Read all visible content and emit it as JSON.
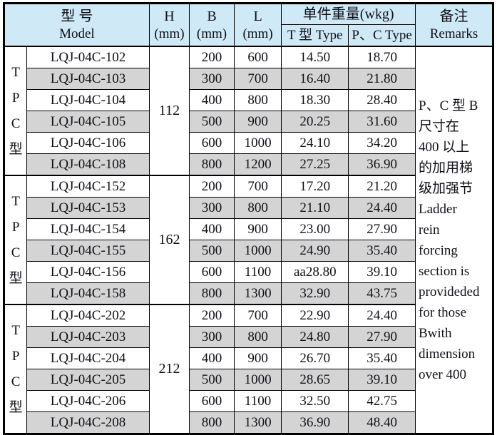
{
  "header": {
    "model_zh": "型  号",
    "model_en": "Model",
    "h_label": "H",
    "h_unit": "(mm)",
    "b_label": "B",
    "b_unit": "(mm)",
    "l_label": "L",
    "l_unit": "(mm)",
    "weight_label": "单件重量(wkg)",
    "weight_t_label": "T 型 Type",
    "weight_pc_label": "P、C Type",
    "remarks_zh": "备注",
    "remarks_en": "Remarks"
  },
  "groups": [
    {
      "type_label": [
        "T",
        "P",
        "C",
        "型"
      ],
      "h": "112",
      "rows": [
        {
          "model": "LQJ-04C-102",
          "b": "200",
          "l": "600",
          "t_weight": "14.50",
          "pc_weight": "18.70"
        },
        {
          "model": "LQJ-04C-103",
          "b": "300",
          "l": "700",
          "t_weight": "16.40",
          "pc_weight": "21.80"
        },
        {
          "model": "LQJ-04C-104",
          "b": "400",
          "l": "800",
          "t_weight": "18.30",
          "pc_weight": "28.40"
        },
        {
          "model": "LQJ-04C-105",
          "b": "500",
          "l": "900",
          "t_weight": "20.25",
          "pc_weight": "31.60"
        },
        {
          "model": "LQJ-04C-106",
          "b": "600",
          "l": "1000",
          "t_weight": "24.10",
          "pc_weight": "34.20"
        },
        {
          "model": "LQJ-04C-108",
          "b": "800",
          "l": "1200",
          "t_weight": "27.25",
          "pc_weight": "36.90"
        }
      ]
    },
    {
      "type_label": [
        "T",
        "P",
        "C",
        "型"
      ],
      "h": "162",
      "rows": [
        {
          "model": "LQJ-04C-152",
          "b": "200",
          "l": "700",
          "t_weight": "17.20",
          "pc_weight": "21.20"
        },
        {
          "model": "LQJ-04C-153",
          "b": "300",
          "l": "800",
          "t_weight": "21.10",
          "pc_weight": "24.40"
        },
        {
          "model": "LQJ-04C-154",
          "b": "400",
          "l": "900",
          "t_weight": "23.00",
          "pc_weight": "27.90"
        },
        {
          "model": "LQJ-04C-155",
          "b": "500",
          "l": "1000",
          "t_weight": "24.90",
          "pc_weight": "35.40"
        },
        {
          "model": "LQJ-04C-156",
          "b": "600",
          "l": "1100",
          "t_weight": "aa28.80",
          "pc_weight": "39.10"
        },
        {
          "model": "LQJ-04C-158",
          "b": "800",
          "l": "1300",
          "t_weight": "32.90",
          "pc_weight": "43.75"
        }
      ]
    },
    {
      "type_label": [
        "T",
        "P",
        "C",
        "型"
      ],
      "h": "212",
      "rows": [
        {
          "model": "LQJ-04C-202",
          "b": "200",
          "l": "700",
          "t_weight": "22.90",
          "pc_weight": "24.40"
        },
        {
          "model": "LQJ-04C-203",
          "b": "300",
          "l": "800",
          "t_weight": "24.80",
          "pc_weight": "27.90"
        },
        {
          "model": "LQJ-04C-204",
          "b": "400",
          "l": "900",
          "t_weight": "26.70",
          "pc_weight": "35.40"
        },
        {
          "model": "LQJ-04C-205",
          "b": "500",
          "l": "1000",
          "t_weight": "28.65",
          "pc_weight": "39.10"
        },
        {
          "model": "LQJ-04C-206",
          "b": "600",
          "l": "1100",
          "t_weight": "32.50",
          "pc_weight": "42.75"
        },
        {
          "model": "LQJ-04C-208",
          "b": "800",
          "l": "1300",
          "t_weight": "36.90",
          "pc_weight": "48.40"
        }
      ]
    }
  ],
  "remarks": {
    "lines": [
      "P、C 型 B",
      "尺寸在",
      "400 以上",
      "的加用梯",
      "级加强节",
      "Ladder",
      "rein",
      "forcing",
      "section is",
      "provideded",
      "for those",
      "Bwith",
      "dimension",
      "over 400"
    ]
  },
  "colors": {
    "header_bg": "#cfe9f6",
    "alt_row_bg": "#d4d4d4",
    "border": "#000000",
    "text": "#101018"
  }
}
